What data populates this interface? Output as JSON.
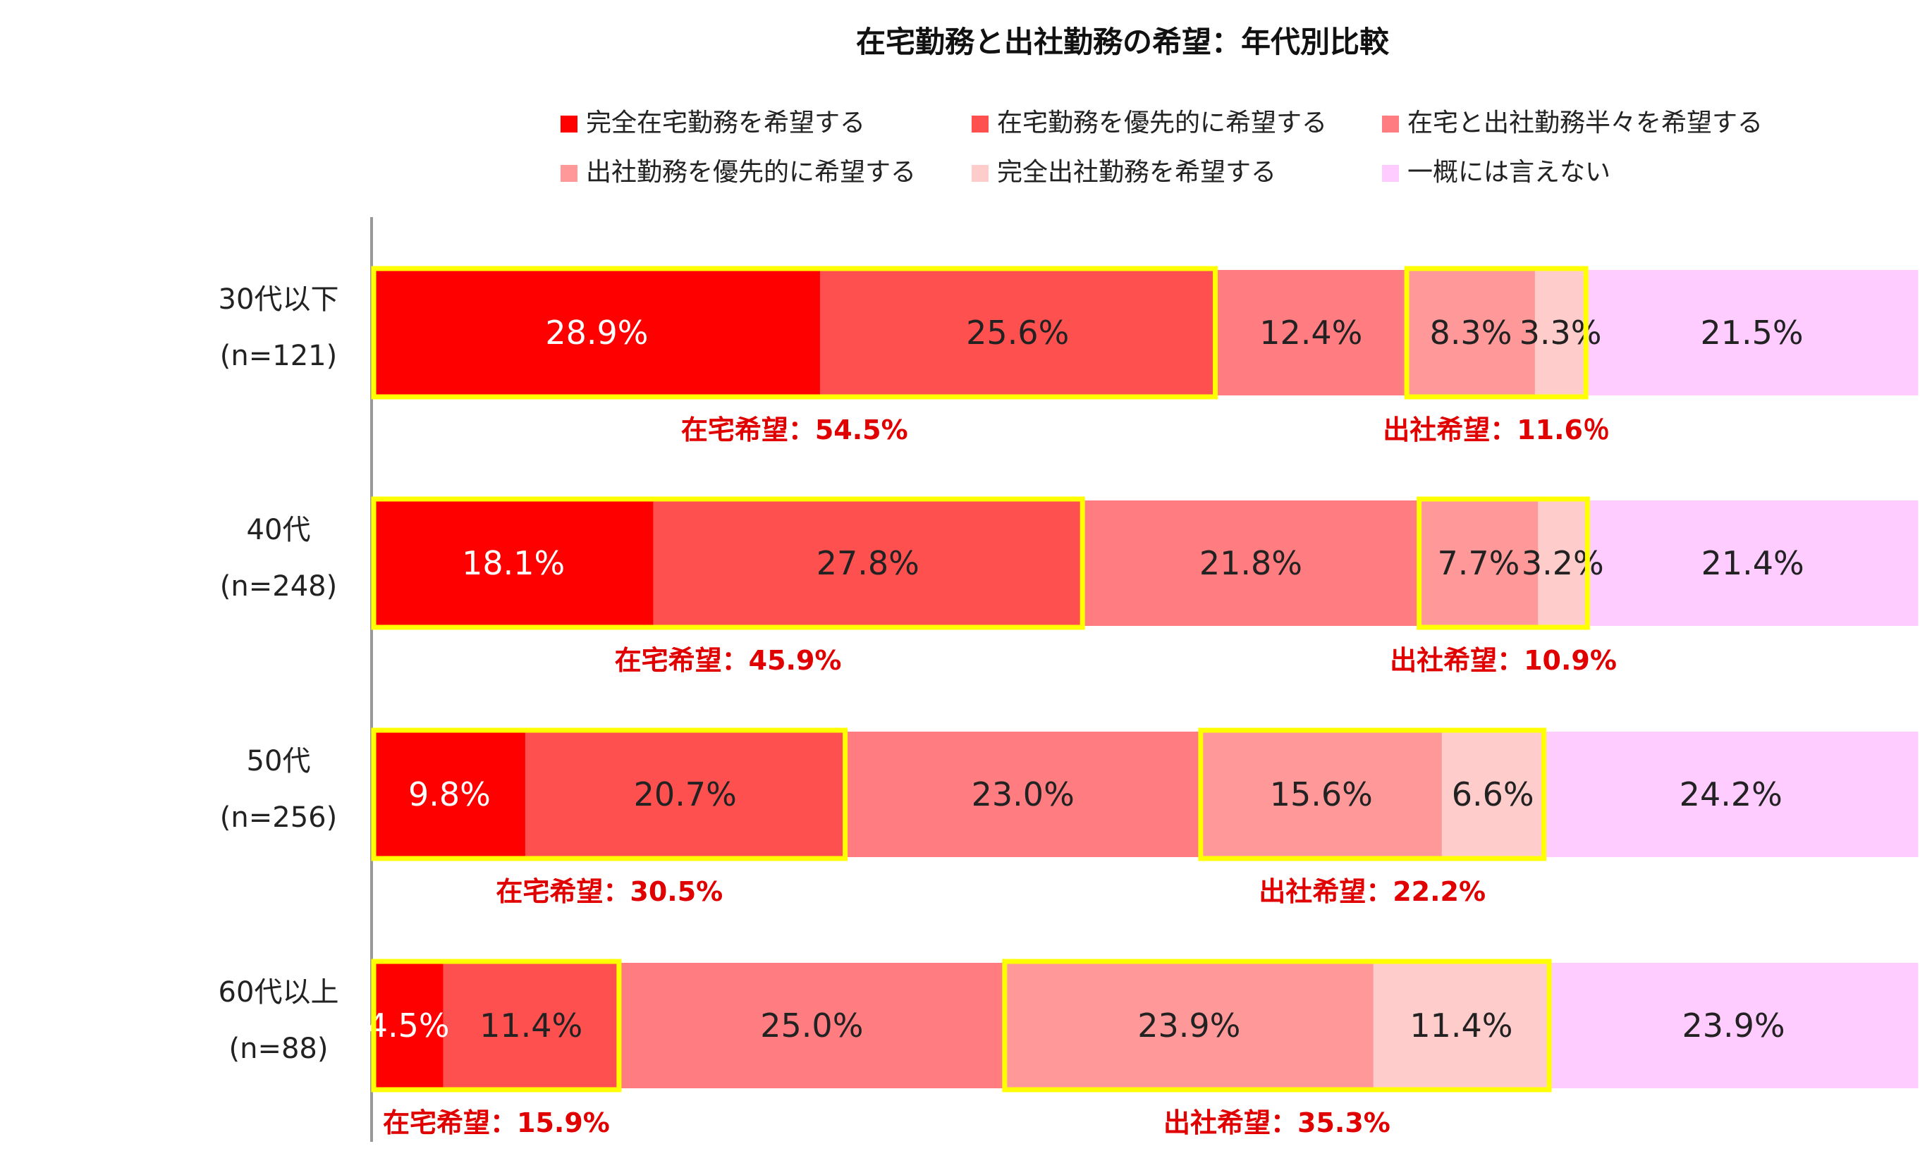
{
  "chart_data": {
    "type": "bar",
    "orientation": "horizontal",
    "stacked": true,
    "title": "在宅勤務と出社勤務の希望：年代別比較",
    "legend_position": "top",
    "categories": [
      {
        "label": "30代以下",
        "n": "(n=121)"
      },
      {
        "label": "40代",
        "n": "(n=248)"
      },
      {
        "label": "50代",
        "n": "(n=256)"
      },
      {
        "label": "60代以上",
        "n": "(n=88)"
      }
    ],
    "series": [
      {
        "name": "完全在宅勤務を希望する",
        "color": "#ff0000",
        "label_color": "#ffffff",
        "values": [
          28.9,
          18.1,
          9.8,
          4.5
        ]
      },
      {
        "name": "在宅勤務を優先的に希望する",
        "color": "#ff5050",
        "label_color": "#222222",
        "values": [
          25.6,
          27.8,
          20.7,
          11.4
        ]
      },
      {
        "name": "在宅と出社勤務半々を希望する",
        "color": "#ff7c80",
        "label_color": "#222222",
        "values": [
          12.4,
          21.8,
          23.0,
          25.0
        ]
      },
      {
        "name": "出社勤務を優先的に希望する",
        "color": "#ff9999",
        "label_color": "#222222",
        "values": [
          8.3,
          7.7,
          15.6,
          23.9
        ]
      },
      {
        "name": "完全出社勤務を希望する",
        "color": "#ffcccc",
        "label_color": "#222222",
        "values": [
          3.3,
          3.2,
          6.6,
          11.4
        ]
      },
      {
        "name": "一概には言えない",
        "color": "#ffccff",
        "label_color": "#222222",
        "values": [
          21.5,
          21.4,
          24.2,
          23.9
        ]
      }
    ],
    "value_suffix": "%",
    "annotations": [
      {
        "remote": "在宅希望：54.5%",
        "office": "出社希望：11.6％"
      },
      {
        "remote": "在宅希望：45.9%",
        "office": "出社希望：10.9%"
      },
      {
        "remote": "在宅希望：30.5%",
        "office": "出社希望：22.2%"
      },
      {
        "remote": "在宅希望：15.9%",
        "office": "出社希望：35.3%"
      }
    ],
    "highlight_color": "#ffff00",
    "annotation_color": "#e00000"
  }
}
